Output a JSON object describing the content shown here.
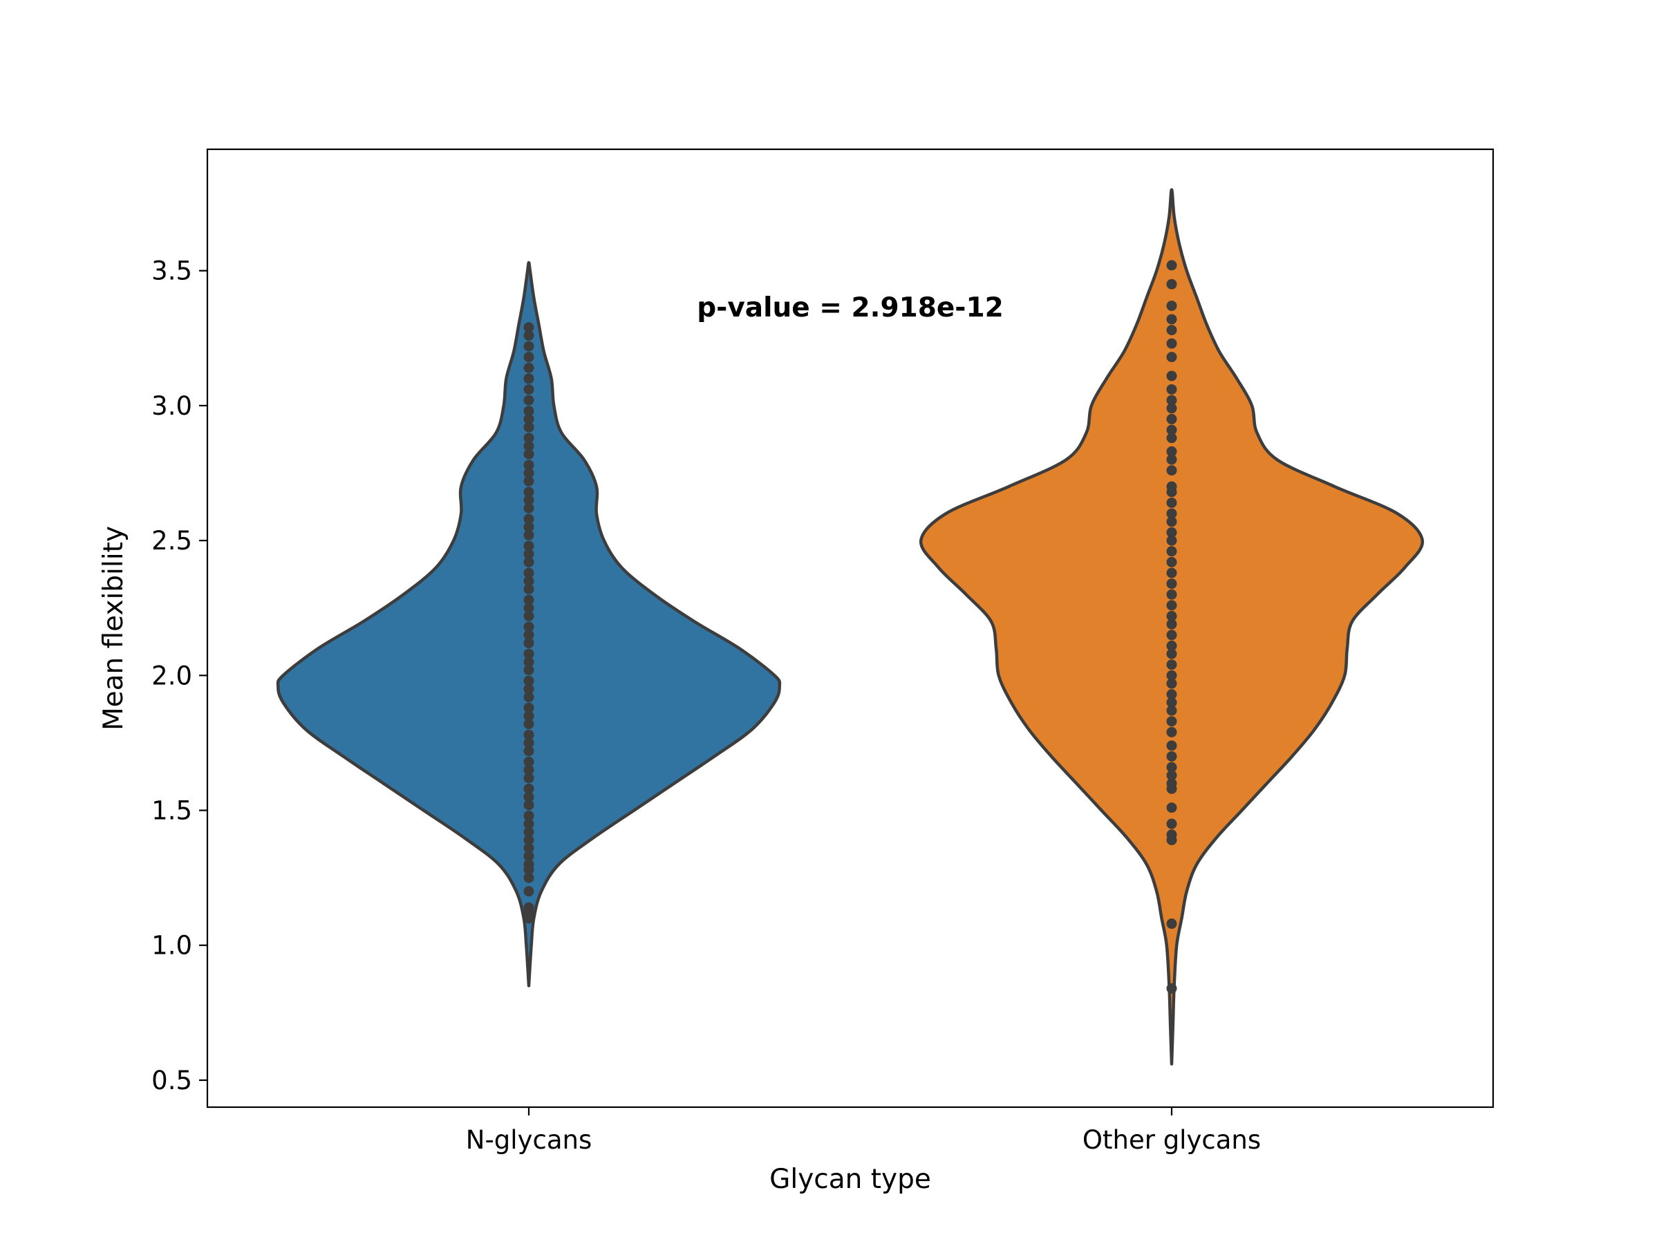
{
  "chart_data": {
    "type": "violin",
    "xlabel": "Glycan type",
    "ylabel": "Mean flexibility",
    "ylim": [
      0.4,
      3.95
    ],
    "yticks": [
      0.5,
      1.0,
      1.5,
      2.0,
      2.5,
      3.0,
      3.5
    ],
    "ytick_labels": [
      "0.5",
      "1.0",
      "1.5",
      "2.0",
      "2.5",
      "3.0",
      "3.5"
    ],
    "categories": [
      "N-glycans",
      "Other glycans"
    ],
    "annotation": "p-value = 2.918e-12",
    "inner": "point",
    "series": [
      {
        "name": "N-glycans",
        "color": "#3274a1",
        "range": [
          0.85,
          3.53
        ],
        "density_profile": [
          [
            0.85,
            0.0
          ],
          [
            1.0,
            0.01
          ],
          [
            1.1,
            0.02
          ],
          [
            1.2,
            0.05
          ],
          [
            1.3,
            0.12
          ],
          [
            1.4,
            0.26
          ],
          [
            1.5,
            0.42
          ],
          [
            1.6,
            0.58
          ],
          [
            1.7,
            0.74
          ],
          [
            1.8,
            0.89
          ],
          [
            1.9,
            0.98
          ],
          [
            1.96,
            1.0
          ],
          [
            2.0,
            0.98
          ],
          [
            2.1,
            0.84
          ],
          [
            2.2,
            0.66
          ],
          [
            2.3,
            0.5
          ],
          [
            2.4,
            0.37
          ],
          [
            2.5,
            0.3
          ],
          [
            2.6,
            0.27
          ],
          [
            2.7,
            0.27
          ],
          [
            2.8,
            0.22
          ],
          [
            2.9,
            0.13
          ],
          [
            3.0,
            0.1
          ],
          [
            3.1,
            0.09
          ],
          [
            3.2,
            0.06
          ],
          [
            3.3,
            0.04
          ],
          [
            3.4,
            0.02
          ],
          [
            3.5,
            0.005
          ],
          [
            3.53,
            0.0
          ]
        ],
        "points": [
          1.1,
          1.12,
          1.14,
          1.2,
          1.25,
          1.28,
          1.3,
          1.33,
          1.36,
          1.39,
          1.42,
          1.45,
          1.48,
          1.52,
          1.55,
          1.58,
          1.62,
          1.65,
          1.68,
          1.72,
          1.75,
          1.78,
          1.82,
          1.85,
          1.88,
          1.92,
          1.95,
          1.98,
          2.02,
          2.05,
          2.08,
          2.12,
          2.15,
          2.18,
          2.22,
          2.25,
          2.28,
          2.32,
          2.35,
          2.38,
          2.42,
          2.45,
          2.48,
          2.52,
          2.55,
          2.58,
          2.62,
          2.65,
          2.68,
          2.72,
          2.75,
          2.78,
          2.82,
          2.85,
          2.88,
          2.92,
          2.95,
          2.98,
          3.02,
          3.06,
          3.1,
          3.14,
          3.18,
          3.22,
          3.26,
          3.29
        ]
      },
      {
        "name": "Other glycans",
        "color": "#e1812c",
        "range": [
          0.56,
          3.8
        ],
        "density_profile": [
          [
            0.56,
            0.0
          ],
          [
            0.7,
            0.005
          ],
          [
            0.85,
            0.01
          ],
          [
            1.0,
            0.02
          ],
          [
            1.1,
            0.04
          ],
          [
            1.2,
            0.06
          ],
          [
            1.3,
            0.1
          ],
          [
            1.4,
            0.18
          ],
          [
            1.5,
            0.28
          ],
          [
            1.6,
            0.38
          ],
          [
            1.7,
            0.48
          ],
          [
            1.8,
            0.57
          ],
          [
            1.9,
            0.64
          ],
          [
            2.0,
            0.69
          ],
          [
            2.1,
            0.7
          ],
          [
            2.2,
            0.72
          ],
          [
            2.3,
            0.82
          ],
          [
            2.4,
            0.93
          ],
          [
            2.5,
            1.0
          ],
          [
            2.6,
            0.9
          ],
          [
            2.7,
            0.65
          ],
          [
            2.8,
            0.42
          ],
          [
            2.9,
            0.34
          ],
          [
            3.0,
            0.32
          ],
          [
            3.1,
            0.26
          ],
          [
            3.2,
            0.19
          ],
          [
            3.3,
            0.14
          ],
          [
            3.4,
            0.1
          ],
          [
            3.5,
            0.06
          ],
          [
            3.6,
            0.03
          ],
          [
            3.7,
            0.01
          ],
          [
            3.8,
            0.0
          ]
        ],
        "points": [
          0.84,
          1.08,
          1.39,
          1.41,
          1.45,
          1.51,
          1.58,
          1.6,
          1.63,
          1.66,
          1.7,
          1.74,
          1.79,
          1.83,
          1.87,
          1.9,
          1.93,
          1.97,
          2.0,
          2.04,
          2.08,
          2.11,
          2.15,
          2.19,
          2.22,
          2.26,
          2.3,
          2.34,
          2.38,
          2.42,
          2.46,
          2.5,
          2.53,
          2.57,
          2.6,
          2.64,
          2.68,
          2.7,
          2.76,
          2.8,
          2.83,
          2.88,
          2.91,
          2.95,
          2.99,
          3.02,
          3.06,
          3.11,
          3.18,
          3.23,
          3.28,
          3.32,
          3.37,
          3.45,
          3.52
        ]
      }
    ]
  }
}
